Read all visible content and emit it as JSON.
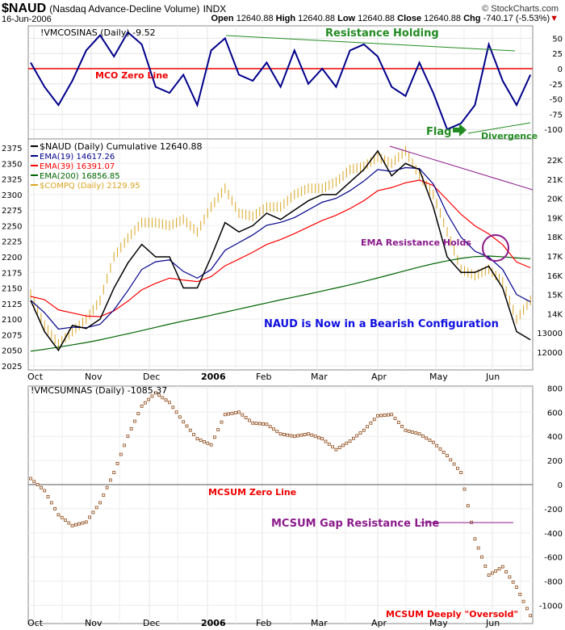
{
  "header": {
    "symbol": "$NAUD",
    "name": "(Nasdaq Advance-Decline Volume)",
    "exchange": "INDX",
    "copyright": "© StockCharts.com",
    "date": "16-Jun-2006",
    "open_label": "Open",
    "open": "12640.88",
    "high_label": "High",
    "high": "12640.88",
    "low_label": "Low",
    "low": "12640.88",
    "close_label": "Close",
    "close": "12640.88",
    "chg_label": "Chg",
    "chg": "-740.17 (-5.53%)"
  },
  "chart_data": [
    {
      "type": "line",
      "title": "!VMCOSINAS (Daily) -9.52",
      "yticks": [
        50,
        25,
        0,
        -25,
        -50,
        -75,
        -100
      ],
      "ylim": [
        -112,
        68
      ],
      "values": [
        10,
        -30,
        -60,
        -20,
        30,
        55,
        20,
        60,
        40,
        -30,
        -40,
        -10,
        -60,
        30,
        50,
        -10,
        -20,
        10,
        -30,
        30,
        -25,
        0,
        -30,
        30,
        40,
        20,
        -30,
        -45,
        10,
        -40,
        -100,
        -90,
        -60,
        40,
        -20,
        -60,
        -10
      ],
      "annotations": [
        "Resistance Holding",
        "MCO Zero Line",
        "Flag",
        "Divergence"
      ],
      "color": "#00008b"
    },
    {
      "type": "line",
      "title": "$NAUD (Daily) Cumulative 12640.88",
      "right_ticks": [
        "22K",
        "21K",
        "20K",
        "19K",
        "18K",
        "17K",
        "16K",
        "15K",
        "14K",
        "13000",
        "12000"
      ],
      "left_ticks": [
        2375,
        2350,
        2325,
        2300,
        2275,
        2250,
        2225,
        2200,
        2175,
        2150,
        2125,
        2100,
        2075,
        2050,
        2025
      ],
      "series": [
        {
          "name": "$NAUD",
          "label": "$NAUD (Daily) Cumulative 12640.88",
          "color": "#000000",
          "axis": "right",
          "values": [
            14689,
            13069,
            12096,
            13393,
            13231,
            13717,
            15338,
            16634,
            17607,
            16958,
            16958,
            15338,
            15338,
            16958,
            18741,
            18255,
            18579,
            19227,
            18903,
            19389,
            19875,
            20199,
            20199,
            20847,
            21496,
            22468,
            21172,
            21820,
            21496,
            19551,
            16958,
            16148,
            16148,
            16472,
            15338,
            13069,
            12640
          ]
        },
        {
          "name": "EMA(19)",
          "label": "EMA(19) 14617.26",
          "color": "#00008b",
          "axis": "right",
          "values": [
            14700,
            14050,
            13200,
            13300,
            13270,
            13450,
            14200,
            15200,
            16300,
            16700,
            16800,
            16200,
            15850,
            16300,
            17300,
            17700,
            18100,
            18600,
            18750,
            19000,
            19400,
            19800,
            20000,
            20400,
            20900,
            21500,
            21400,
            21600,
            21550,
            20750,
            19200,
            17980,
            17250,
            16940,
            16300,
            15000,
            14617
          ]
        },
        {
          "name": "EMA(39)",
          "label": "EMA(39) 16391.07",
          "color": "#ff0000",
          "axis": "right",
          "values": [
            14900,
            14730,
            14200,
            14040,
            13880,
            13850,
            14150,
            14650,
            15240,
            15580,
            15850,
            15750,
            15670,
            15930,
            16490,
            16840,
            17200,
            17600,
            17860,
            18170,
            18510,
            18850,
            19120,
            19470,
            19880,
            20400,
            20560,
            20810,
            20950,
            20670,
            19930,
            19170,
            18570,
            18150,
            17590,
            16690,
            16391
          ]
        },
        {
          "name": "EMA(200)",
          "label": "EMA(200) 16856.85",
          "color": "#006400",
          "axis": "right",
          "values": [
            12050,
            12150,
            12260,
            12380,
            12500,
            12640,
            12800,
            12960,
            13120,
            13290,
            13460,
            13620,
            13760,
            13920,
            14080,
            14240,
            14400,
            14560,
            14720,
            14870,
            15020,
            15180,
            15340,
            15500,
            15680,
            15860,
            16050,
            16240,
            16430,
            16600,
            16750,
            16880,
            16970,
            17000,
            16960,
            16900,
            16856
          ]
        },
        {
          "name": "$COMPQ",
          "label": "$COMPQ (Daily) 2129.95",
          "color": "#daa520",
          "axis": "left",
          "values": [
            2140,
            2090,
            2060,
            2080,
            2100,
            2130,
            2200,
            2230,
            2255,
            2255,
            2250,
            2260,
            2240,
            2280,
            2310,
            2270,
            2265,
            2280,
            2280,
            2300,
            2310,
            2310,
            2320,
            2340,
            2345,
            2360,
            2350,
            2370,
            2330,
            2300,
            2240,
            2180,
            2170,
            2180,
            2160,
            2100,
            2130
          ]
        }
      ],
      "annotations": [
        "EMA Resistance Holds",
        "NAUD is Now in a Bearish Configuration"
      ]
    },
    {
      "type": "scatter",
      "title": "!VMCSUMNAS (Daily) -1085.37",
      "yticks": [
        800,
        600,
        400,
        200,
        0,
        -200,
        -400,
        -600,
        -800,
        -1000
      ],
      "ylim": [
        -1140,
        840
      ],
      "values": [
        50,
        -50,
        -250,
        -340,
        -310,
        -150,
        100,
        400,
        650,
        760,
        680,
        520,
        380,
        330,
        580,
        600,
        510,
        500,
        420,
        400,
        420,
        380,
        290,
        360,
        450,
        570,
        580,
        450,
        420,
        350,
        240,
        100,
        -450,
        -750,
        -680,
        -850,
        -1085
      ],
      "annotations": [
        "MCSUM Zero Line",
        "MCSUM Gap Resistance Line",
        "MCSUM Deeply \"Oversold\""
      ],
      "color": "#8b4513"
    }
  ],
  "x_labels": [
    "Oct",
    "Nov",
    "Dec",
    "2006",
    "Feb",
    "Mar",
    "Apr",
    "May",
    "Jun"
  ]
}
